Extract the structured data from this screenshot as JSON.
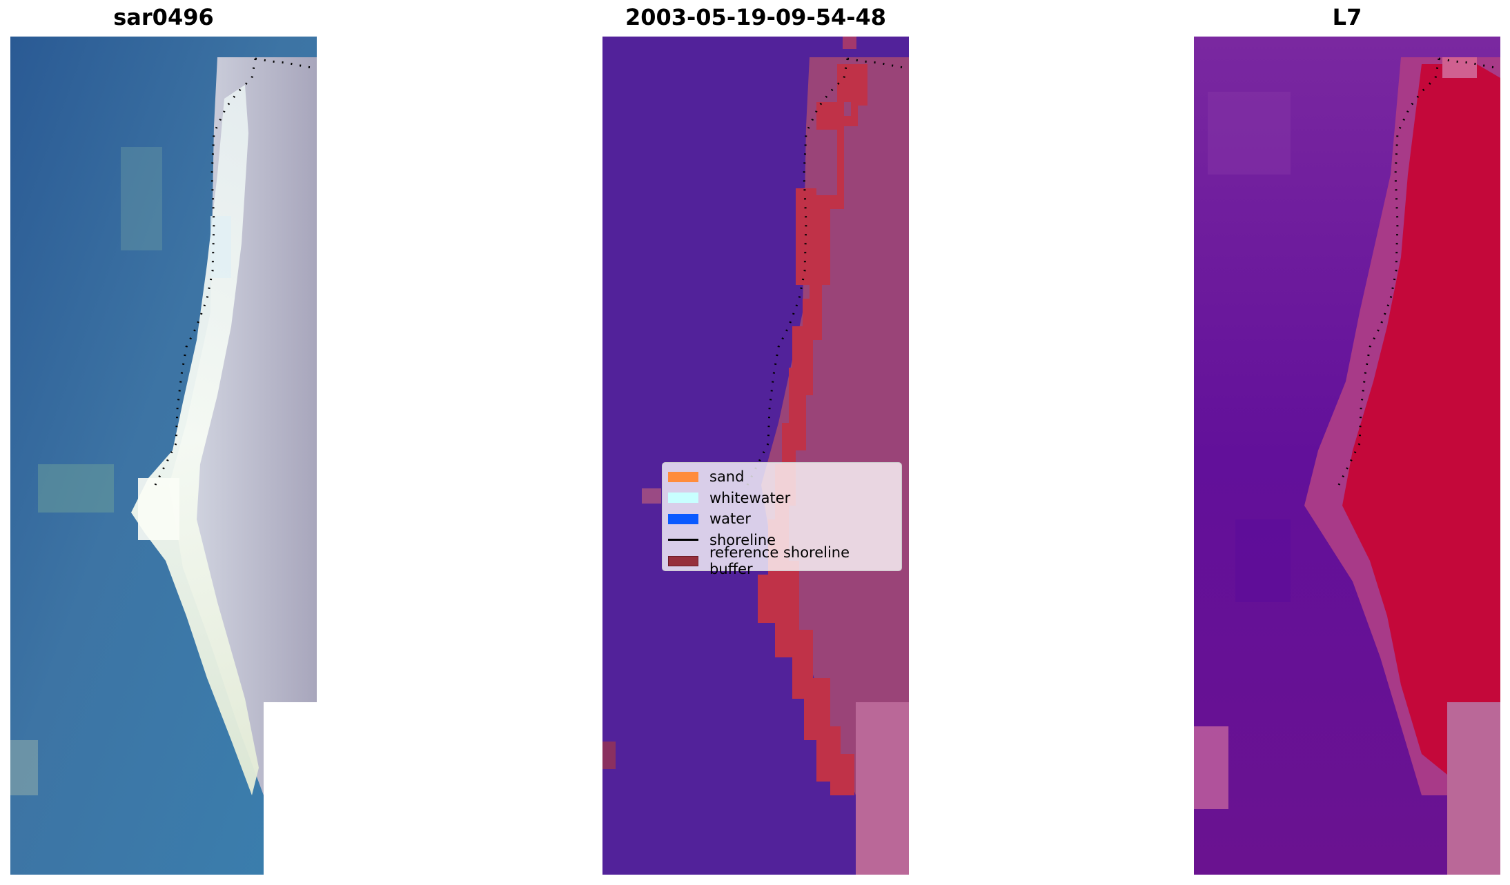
{
  "panels": [
    {
      "title": "sar0496"
    },
    {
      "title": "2003-05-19-09-54-48"
    },
    {
      "title": "L7"
    }
  ],
  "legend": {
    "items": [
      {
        "label": "sand",
        "color": "#ff8c3c",
        "kind": "patch"
      },
      {
        "label": "whitewater",
        "color": "#c8ffff",
        "kind": "patch"
      },
      {
        "label": "water",
        "color": "#0a5aff",
        "kind": "patch"
      },
      {
        "label": "shoreline",
        "color": "#000000",
        "kind": "line"
      },
      {
        "label": "reference shoreline buffer",
        "color": "#962f3c",
        "kind": "patch"
      }
    ]
  },
  "colors": {
    "rgb_water": "#3e78a8",
    "rgb_land": "#b8b6c8",
    "rgb_whitewater": "#f0f4f0",
    "class_background": "#52229a",
    "class_buffer": "#c03248",
    "class_land": "#9a4478",
    "class_nodata": "#ba6898",
    "mndwi_water": "#6a1296",
    "mndwi_land": "#c4083a",
    "mndwi_nodata": "#ba6898"
  }
}
